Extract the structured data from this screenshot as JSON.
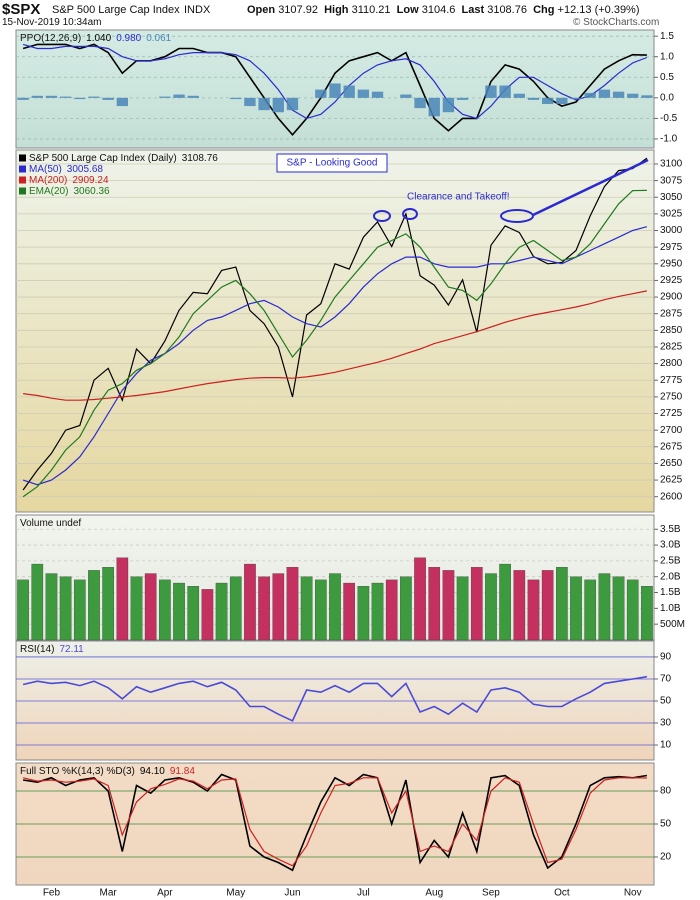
{
  "header": {
    "symbol": "$SPX",
    "name": "S&P 500 Large Cap Index",
    "exchange": "INDX",
    "datetime": "15-Nov-2019 10:34am",
    "open_label": "Open",
    "open": 3107.92,
    "high_label": "High",
    "high": 3110.21,
    "low_label": "Low",
    "low": 3104.6,
    "last_label": "Last",
    "last": 3108.76,
    "change_label": "Chg",
    "change": "+12.13",
    "change_pct": "(+0.39%)",
    "copyright": "© StockCharts.com"
  },
  "chart_data": [
    {
      "type": "line",
      "title": "PPO(12,26,9)",
      "ylim": [
        -1.22,
        1.65
      ],
      "yticks": [
        1.5,
        {
          "value": 1,
          "label": "1.0"
        },
        0.5,
        {
          "value": 0,
          "label": "0.0"
        },
        -0.5,
        {
          "value": -1,
          "label": "-1.0"
        }
      ],
      "grid": true,
      "series": [
        {
          "color": "#000000",
          "legend_value": "1.040",
          "values": [
            1.2,
            1.3,
            1.3,
            1.3,
            1.2,
            1.3,
            1.1,
            0.6,
            0.9,
            0.9,
            1,
            1.2,
            1.2,
            1.1,
            1.1,
            1,
            0.5,
            0,
            -0.5,
            -0.9,
            -0.5,
            0,
            0.6,
            0.9,
            1,
            1.1,
            0.9,
            1.1,
            0.3,
            -0.5,
            -0.8,
            -0.5,
            -0.5,
            0.4,
            0.8,
            0.7,
            0.4,
            0,
            -0.2,
            -0.1,
            0.3,
            0.7,
            0.9,
            1.05,
            1.04
          ]
        },
        {
          "color": "#2a2ad0",
          "legend_value": "0.980",
          "values": [
            1.3,
            1.2,
            1.2,
            1.25,
            1.25,
            1.25,
            1.2,
            1,
            0.9,
            0.9,
            0.95,
            1.05,
            1.1,
            1.1,
            1.1,
            1.05,
            0.9,
            0.6,
            0.2,
            -0.3,
            -0.5,
            -0.4,
            -0.1,
            0.3,
            0.6,
            0.8,
            0.9,
            0.95,
            0.8,
            0.4,
            -0.1,
            -0.4,
            -0.5,
            -0.2,
            0.2,
            0.5,
            0.5,
            0.3,
            0.1,
            -0.05,
            0.05,
            0.3,
            0.6,
            0.85,
            0.98
          ]
        },
        {
          "type": "bar",
          "color": "#4a86b8",
          "values": [
            -0.05,
            0.05,
            0.05,
            0.03,
            -0.03,
            0.03,
            -0.05,
            -0.2,
            0,
            0,
            0.03,
            0.08,
            0.05,
            0,
            0,
            -0.03,
            -0.2,
            -0.3,
            -0.35,
            -0.3,
            0,
            0.2,
            0.35,
            0.3,
            0.2,
            0.15,
            0,
            0.08,
            -0.25,
            -0.45,
            -0.35,
            -0.05,
            0,
            0.3,
            0.3,
            0.1,
            -0.05,
            -0.15,
            -0.15,
            -0.03,
            0.12,
            0.2,
            0.15,
            0.1,
            0.061
          ]
        }
      ]
    },
    {
      "type": "line",
      "ylim": [
        2577,
        3121
      ],
      "grid": true,
      "yticks": [
        2600,
        2625,
        2650,
        2675,
        2700,
        2725,
        2750,
        2775,
        2800,
        2825,
        2850,
        2875,
        2900,
        2925,
        2950,
        2975,
        3000,
        3025,
        3050,
        3075,
        3100
      ],
      "categories": [
        null,
        null,
        "Feb",
        null,
        null,
        null,
        "Mar",
        null,
        null,
        null,
        "Apr",
        null,
        null,
        null,
        null,
        "May",
        null,
        null,
        null,
        "Jun",
        null,
        null,
        null,
        null,
        "Jul",
        null,
        null,
        null,
        null,
        "Aug",
        null,
        null,
        null,
        "Sep",
        null,
        null,
        null,
        null,
        "Oct",
        null,
        null,
        null,
        null,
        "Nov",
        null
      ],
      "annotations": [
        "S&P - Looking Good",
        "Clearance and Takeoff!"
      ],
      "series": [
        {
          "name": "S&P 500 Large Cap Index (Daily)",
          "color": "#000000",
          "values": [
            2610,
            2640,
            2665,
            2700,
            2707,
            2775,
            2793,
            2745,
            2822,
            2800,
            2834,
            2880,
            2907,
            2905,
            2940,
            2945,
            2880,
            2860,
            2825,
            2750,
            2873,
            2890,
            2950,
            2942,
            2990,
            3013,
            2976,
            3025,
            2932,
            2918,
            2888,
            2926,
            2847,
            2978,
            3007,
            2997,
            2961,
            2950,
            2952,
            2970,
            3022,
            3066,
            3090,
            3093,
            3108.76
          ]
        },
        {
          "name": "MA(50)",
          "color": "#2a2ad0",
          "values": [
            2625,
            2618,
            2625,
            2640,
            2660,
            2690,
            2725,
            2760,
            2785,
            2805,
            2815,
            2830,
            2850,
            2865,
            2870,
            2880,
            2890,
            2895,
            2885,
            2870,
            2860,
            2855,
            2870,
            2890,
            2915,
            2935,
            2950,
            2960,
            2960,
            2950,
            2945,
            2945,
            2945,
            2950,
            2950,
            2955,
            2960,
            2955,
            2950,
            2960,
            2970,
            2980,
            2990,
            3000,
            3005.68
          ]
        },
        {
          "name": "MA(200)",
          "color": "#cc2020",
          "values": [
            2755,
            2752,
            2748,
            2745,
            2745,
            2746,
            2748,
            2750,
            2752,
            2755,
            2758,
            2762,
            2766,
            2770,
            2773,
            2776,
            2778,
            2779,
            2779,
            2778,
            2780,
            2783,
            2787,
            2792,
            2797,
            2802,
            2808,
            2815,
            2822,
            2830,
            2836,
            2842,
            2848,
            2855,
            2862,
            2868,
            2873,
            2877,
            2881,
            2885,
            2890,
            2896,
            2901,
            2905,
            2909.24
          ]
        },
        {
          "name": "EMA(20)",
          "color": "#1f7a1f",
          "values": [
            2600,
            2615,
            2640,
            2670,
            2690,
            2730,
            2760,
            2770,
            2790,
            2800,
            2815,
            2840,
            2875,
            2895,
            2915,
            2925,
            2905,
            2880,
            2845,
            2810,
            2835,
            2865,
            2900,
            2925,
            2950,
            2975,
            2985,
            2995,
            2975,
            2945,
            2915,
            2910,
            2895,
            2920,
            2950,
            2975,
            2985,
            2970,
            2955,
            2960,
            2980,
            3010,
            3040,
            3060,
            3060.36
          ]
        }
      ]
    },
    {
      "type": "bar",
      "title": "Volume undef",
      "ylim": [
        0,
        3.95
      ],
      "grid": true,
      "colors": {
        "up": "#3e9a3e",
        "down": "#c43060"
      },
      "yticks": [
        {
          "value": 0.5,
          "label": "500M"
        },
        {
          "value": 1,
          "label": "1.0B"
        },
        {
          "value": 1.5,
          "label": "1.5B"
        },
        {
          "value": 2,
          "label": "2.0B"
        },
        {
          "value": 2.5,
          "label": "2.5B"
        },
        {
          "value": 3,
          "label": "3.0B"
        },
        {
          "value": 3.5,
          "label": "3.5B"
        }
      ],
      "values": [
        1.9,
        2.4,
        2.1,
        2,
        1.9,
        2.2,
        2.3,
        2.6,
        2,
        2.1,
        1.9,
        1.8,
        1.7,
        1.6,
        1.8,
        2,
        2.4,
        2,
        2.1,
        2.3,
        2,
        1.9,
        2.1,
        1.8,
        1.7,
        1.8,
        1.9,
        2,
        2.6,
        2.3,
        2.2,
        2,
        2.3,
        2.1,
        2.4,
        2.2,
        1.9,
        2.2,
        2.3,
        2,
        1.9,
        2.1,
        2,
        1.9,
        1.7
      ]
    },
    {
      "type": "line",
      "title": "RSI(14)",
      "ylim": [
        -3.6,
        104.5
      ],
      "yticks": [
        10,
        30,
        50,
        70,
        90
      ],
      "grid": true,
      "series": [
        {
          "color": "#4a4ad8",
          "values": [
            65,
            68,
            66,
            67,
            64,
            68,
            62,
            52,
            63,
            58,
            62,
            66,
            68,
            63,
            67,
            60,
            45,
            45,
            38,
            32,
            60,
            58,
            64,
            58,
            66,
            66,
            54,
            66,
            40,
            45,
            38,
            48,
            40,
            60,
            62,
            58,
            47,
            45,
            45,
            52,
            58,
            66,
            68,
            70,
            72.11
          ]
        }
      ]
    },
    {
      "type": "line",
      "title": "Full STO %K(14,3) %D(3)",
      "ylim": [
        -5.5,
        105.5
      ],
      "yticks": [
        20,
        50,
        80
      ],
      "grid": true,
      "categories": [
        null,
        null,
        "Feb",
        null,
        null,
        null,
        "Mar",
        null,
        null,
        null,
        "Apr",
        null,
        null,
        null,
        null,
        "May",
        null,
        null,
        null,
        "Jun",
        null,
        null,
        null,
        null,
        "Jul",
        null,
        null,
        null,
        null,
        "Aug",
        null,
        null,
        null,
        "Sep",
        null,
        null,
        null,
        null,
        "Oct",
        null,
        null,
        null,
        null,
        "Nov",
        null
      ],
      "series": [
        {
          "color": "#000000",
          "legend_value": "94.10",
          "values": [
            90,
            88,
            92,
            85,
            90,
            92,
            80,
            25,
            85,
            78,
            90,
            92,
            88,
            80,
            95,
            90,
            30,
            20,
            15,
            8,
            40,
            70,
            92,
            85,
            95,
            92,
            50,
            90,
            15,
            35,
            20,
            60,
            25,
            92,
            94,
            85,
            40,
            10,
            20,
            50,
            85,
            92,
            93,
            92,
            94.1
          ]
        },
        {
          "color": "#d02020",
          "values": [
            92,
            89,
            90,
            88,
            89,
            91,
            85,
            40,
            70,
            82,
            86,
            91,
            89,
            82,
            90,
            91,
            45,
            25,
            18,
            12,
            30,
            60,
            85,
            87,
            92,
            92,
            60,
            80,
            25,
            30,
            25,
            50,
            35,
            80,
            92,
            88,
            50,
            15,
            18,
            45,
            78,
            90,
            92,
            92,
            91.84
          ]
        }
      ]
    }
  ]
}
